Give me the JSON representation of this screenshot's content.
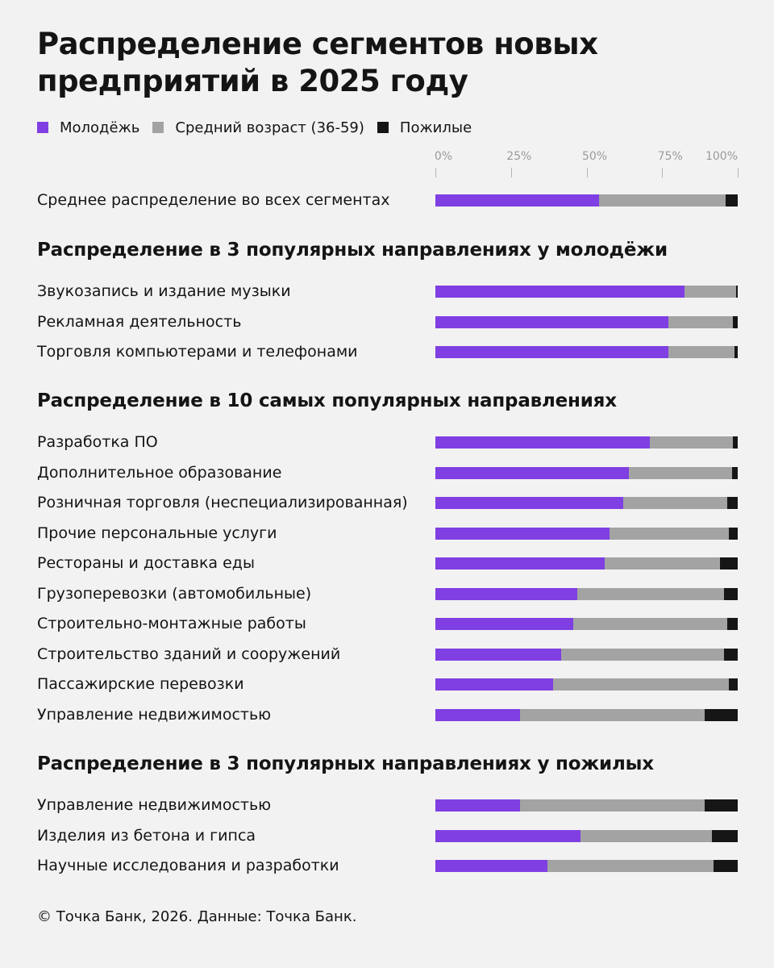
{
  "title": "Распределение сегментов новых предприятий в 2025 году",
  "legend": [
    {
      "label": "Молодёжь",
      "color": "#7f3fe2"
    },
    {
      "label": "Средний возраст (36-59)",
      "color": "#a3a3a3"
    },
    {
      "label": "Пожилые",
      "color": "#161616"
    }
  ],
  "footer": "© Точка Банк, 2026. Данные: Точка Банк.",
  "chart_data": {
    "type": "bar",
    "orientation": "horizontal",
    "stacked": true,
    "xlim": [
      0,
      100
    ],
    "x_ticks": [
      "0%",
      "25%",
      "50%",
      "75%",
      "100%"
    ],
    "series_colors": [
      "#7f3fe2",
      "#a3a3a3",
      "#161616"
    ],
    "sections": [
      {
        "title": "",
        "rows": [
          {
            "label": "Среднее распределение во всех сегментах",
            "values": [
              54,
              42,
              4
            ]
          }
        ]
      },
      {
        "title": "Распределение в 3 популярных направлениях у молодёжи",
        "rows": [
          {
            "label": "Звукозапись и издание музыки",
            "values": [
              82.5,
              17,
              0.5
            ]
          },
          {
            "label": "Рекламная деятельность",
            "values": [
              77,
              21.5,
              1.5
            ]
          },
          {
            "label": "Торговля компьютерами и телефонами",
            "values": [
              77,
              22,
              1
            ]
          }
        ]
      },
      {
        "title": "Распределение в 10 самых популярных направлениях",
        "rows": [
          {
            "label": "Разработка ПО",
            "values": [
              71,
              27.5,
              1.5
            ]
          },
          {
            "label": "Дополнительное образование",
            "values": [
              64,
              34,
              2
            ]
          },
          {
            "label": "Розничная торговля (неспециализированная)",
            "values": [
              62,
              34.5,
              3.5
            ]
          },
          {
            "label": "Прочие персональные услуги",
            "values": [
              57.5,
              39.5,
              3
            ]
          },
          {
            "label": "Рестораны и доставка еды",
            "values": [
              56,
              38,
              6
            ]
          },
          {
            "label": "Грузоперевозки (автомобильные)",
            "values": [
              47,
              48.5,
              4.5
            ]
          },
          {
            "label": "Строительно-монтажные работы",
            "values": [
              45.5,
              51,
              3.5
            ]
          },
          {
            "label": "Строительство зданий и сооружений",
            "values": [
              41.5,
              54,
              4.5
            ]
          },
          {
            "label": "Пассажирские перевозки",
            "values": [
              39,
              58,
              3
            ]
          },
          {
            "label": "Управление недвижимостью",
            "values": [
              28,
              61,
              11
            ]
          }
        ]
      },
      {
        "title": "Распределение в 3 популярных направлениях у пожилых",
        "rows": [
          {
            "label": "Управление недвижимостью",
            "values": [
              28,
              61,
              11
            ]
          },
          {
            "label": "Изделия из бетона и гипса",
            "values": [
              48,
              43.5,
              8.5
            ]
          },
          {
            "label": "Научные исследования и разработки",
            "values": [
              37,
              55,
              8
            ]
          }
        ]
      }
    ]
  }
}
